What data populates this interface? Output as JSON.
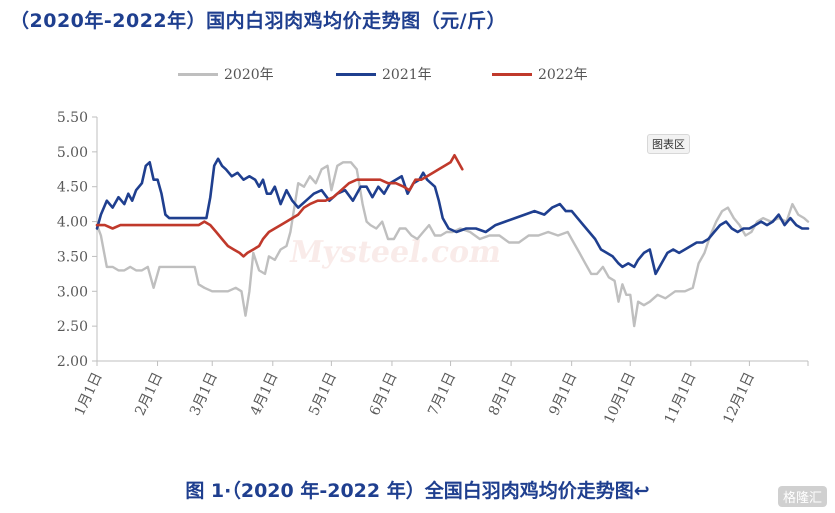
{
  "title": "（2020年-2022年）国内白羽肉鸡均价走势图（元/斤）",
  "caption": "图 1·（2020 年-2022 年）全国白羽肉鸡均价走势图↩",
  "chart_area_tag": "图表区",
  "watermark": "Mysteel.com",
  "corner_badge": "格隆汇",
  "colors": {
    "series_2020": "#bfbfbf",
    "series_2021": "#1f3f8f",
    "series_2022": "#c0392b",
    "title": "#1f3f8f"
  },
  "chart_data": {
    "type": "line",
    "title": "（2020年-2022年）国内白羽肉鸡均价走势图（元/斤）",
    "xlabel": "",
    "ylabel": "",
    "ylim": [
      2.0,
      5.5
    ],
    "yticks": [
      "2.00",
      "2.50",
      "3.00",
      "3.50",
      "4.00",
      "4.50",
      "5.00",
      "5.50"
    ],
    "x_tick_labels": [
      "1月1日",
      "2月1日",
      "3月1日",
      "4月1日",
      "5月1日",
      "6月1日",
      "7月1日",
      "8月1日",
      "9月1日",
      "10月1日",
      "11月1日",
      "12月1日"
    ],
    "x_unit": "day of year (1–365)",
    "legend_position": "top-center",
    "grid": false,
    "series": [
      {
        "name": "2020年",
        "points": [
          [
            1,
            3.95
          ],
          [
            3,
            3.8
          ],
          [
            6,
            3.35
          ],
          [
            9,
            3.35
          ],
          [
            12,
            3.3
          ],
          [
            15,
            3.3
          ],
          [
            18,
            3.35
          ],
          [
            21,
            3.3
          ],
          [
            24,
            3.3
          ],
          [
            27,
            3.35
          ],
          [
            30,
            3.05
          ],
          [
            33,
            3.35
          ],
          [
            36,
            3.35
          ],
          [
            40,
            3.35
          ],
          [
            44,
            3.35
          ],
          [
            48,
            3.35
          ],
          [
            51,
            3.35
          ],
          [
            53,
            3.1
          ],
          [
            56,
            3.05
          ],
          [
            60,
            3.0
          ],
          [
            64,
            3.0
          ],
          [
            68,
            3.0
          ],
          [
            72,
            3.05
          ],
          [
            75,
            3.0
          ],
          [
            77,
            2.65
          ],
          [
            79,
            3.0
          ],
          [
            81,
            3.55
          ],
          [
            84,
            3.3
          ],
          [
            87,
            3.25
          ],
          [
            89,
            3.5
          ],
          [
            92,
            3.45
          ],
          [
            95,
            3.6
          ],
          [
            98,
            3.65
          ],
          [
            100,
            3.85
          ],
          [
            102,
            4.2
          ],
          [
            104,
            4.55
          ],
          [
            107,
            4.5
          ],
          [
            110,
            4.65
          ],
          [
            113,
            4.55
          ],
          [
            116,
            4.75
          ],
          [
            119,
            4.8
          ],
          [
            121,
            4.45
          ],
          [
            124,
            4.8
          ],
          [
            127,
            4.85
          ],
          [
            131,
            4.85
          ],
          [
            134,
            4.75
          ],
          [
            137,
            4.25
          ],
          [
            139,
            4.0
          ],
          [
            141,
            3.95
          ],
          [
            144,
            3.9
          ],
          [
            147,
            4.0
          ],
          [
            150,
            3.75
          ],
          [
            153,
            3.75
          ],
          [
            156,
            3.9
          ],
          [
            159,
            3.9
          ],
          [
            162,
            3.8
          ],
          [
            165,
            3.75
          ],
          [
            168,
            3.85
          ],
          [
            171,
            3.95
          ],
          [
            174,
            3.8
          ],
          [
            177,
            3.8
          ],
          [
            180,
            3.85
          ],
          [
            183,
            3.85
          ],
          [
            187,
            3.9
          ],
          [
            192,
            3.85
          ],
          [
            197,
            3.75
          ],
          [
            202,
            3.8
          ],
          [
            207,
            3.8
          ],
          [
            212,
            3.7
          ],
          [
            217,
            3.7
          ],
          [
            222,
            3.8
          ],
          [
            227,
            3.8
          ],
          [
            232,
            3.85
          ],
          [
            237,
            3.8
          ],
          [
            242,
            3.85
          ],
          [
            245,
            3.7
          ],
          [
            248,
            3.55
          ],
          [
            251,
            3.4
          ],
          [
            254,
            3.25
          ],
          [
            257,
            3.25
          ],
          [
            260,
            3.35
          ],
          [
            263,
            3.2
          ],
          [
            266,
            3.15
          ],
          [
            268,
            2.85
          ],
          [
            270,
            3.1
          ],
          [
            272,
            2.95
          ],
          [
            274,
            2.95
          ],
          [
            276,
            2.5
          ],
          [
            278,
            2.85
          ],
          [
            281,
            2.8
          ],
          [
            284,
            2.85
          ],
          [
            288,
            2.95
          ],
          [
            292,
            2.9
          ],
          [
            297,
            3.0
          ],
          [
            302,
            3.0
          ],
          [
            306,
            3.05
          ],
          [
            309,
            3.4
          ],
          [
            312,
            3.55
          ],
          [
            315,
            3.8
          ],
          [
            318,
            4.0
          ],
          [
            321,
            4.15
          ],
          [
            324,
            4.2
          ],
          [
            327,
            4.05
          ],
          [
            330,
            3.95
          ],
          [
            333,
            3.8
          ],
          [
            336,
            3.85
          ],
          [
            339,
            4.0
          ],
          [
            342,
            4.05
          ],
          [
            346,
            4.0
          ],
          [
            350,
            4.05
          ],
          [
            354,
            4.0
          ],
          [
            357,
            4.25
          ],
          [
            360,
            4.1
          ],
          [
            363,
            4.05
          ],
          [
            365,
            4.0
          ]
        ]
      },
      {
        "name": "2021年",
        "points": [
          [
            1,
            3.9
          ],
          [
            3,
            4.1
          ],
          [
            6,
            4.3
          ],
          [
            9,
            4.2
          ],
          [
            12,
            4.35
          ],
          [
            15,
            4.25
          ],
          [
            17,
            4.4
          ],
          [
            19,
            4.3
          ],
          [
            21,
            4.45
          ],
          [
            24,
            4.55
          ],
          [
            26,
            4.8
          ],
          [
            28,
            4.85
          ],
          [
            30,
            4.6
          ],
          [
            32,
            4.6
          ],
          [
            34,
            4.4
          ],
          [
            36,
            4.1
          ],
          [
            38,
            4.05
          ],
          [
            42,
            4.05
          ],
          [
            47,
            4.05
          ],
          [
            52,
            4.05
          ],
          [
            57,
            4.05
          ],
          [
            59,
            4.35
          ],
          [
            61,
            4.8
          ],
          [
            63,
            4.9
          ],
          [
            65,
            4.8
          ],
          [
            67,
            4.75
          ],
          [
            70,
            4.65
          ],
          [
            73,
            4.7
          ],
          [
            76,
            4.6
          ],
          [
            79,
            4.65
          ],
          [
            82,
            4.6
          ],
          [
            84,
            4.5
          ],
          [
            86,
            4.6
          ],
          [
            88,
            4.4
          ],
          [
            90,
            4.4
          ],
          [
            92,
            4.5
          ],
          [
            95,
            4.25
          ],
          [
            98,
            4.45
          ],
          [
            101,
            4.3
          ],
          [
            104,
            4.2
          ],
          [
            108,
            4.3
          ],
          [
            112,
            4.4
          ],
          [
            116,
            4.45
          ],
          [
            120,
            4.3
          ],
          [
            124,
            4.4
          ],
          [
            128,
            4.45
          ],
          [
            132,
            4.3
          ],
          [
            136,
            4.5
          ],
          [
            139,
            4.5
          ],
          [
            142,
            4.35
          ],
          [
            145,
            4.5
          ],
          [
            148,
            4.4
          ],
          [
            151,
            4.55
          ],
          [
            154,
            4.6
          ],
          [
            157,
            4.65
          ],
          [
            160,
            4.4
          ],
          [
            163,
            4.55
          ],
          [
            166,
            4.6
          ],
          [
            168,
            4.7
          ],
          [
            170,
            4.6
          ],
          [
            172,
            4.55
          ],
          [
            174,
            4.5
          ],
          [
            176,
            4.3
          ],
          [
            178,
            4.05
          ],
          [
            181,
            3.9
          ],
          [
            185,
            3.85
          ],
          [
            190,
            3.9
          ],
          [
            195,
            3.9
          ],
          [
            200,
            3.85
          ],
          [
            205,
            3.95
          ],
          [
            210,
            4.0
          ],
          [
            215,
            4.05
          ],
          [
            220,
            4.1
          ],
          [
            225,
            4.15
          ],
          [
            230,
            4.1
          ],
          [
            234,
            4.2
          ],
          [
            238,
            4.25
          ],
          [
            241,
            4.15
          ],
          [
            244,
            4.15
          ],
          [
            247,
            4.05
          ],
          [
            250,
            3.95
          ],
          [
            253,
            3.85
          ],
          [
            256,
            3.75
          ],
          [
            259,
            3.6
          ],
          [
            262,
            3.55
          ],
          [
            265,
            3.5
          ],
          [
            268,
            3.4
          ],
          [
            270,
            3.35
          ],
          [
            273,
            3.4
          ],
          [
            276,
            3.35
          ],
          [
            278,
            3.45
          ],
          [
            281,
            3.55
          ],
          [
            284,
            3.6
          ],
          [
            287,
            3.25
          ],
          [
            290,
            3.4
          ],
          [
            293,
            3.55
          ],
          [
            296,
            3.6
          ],
          [
            299,
            3.55
          ],
          [
            302,
            3.6
          ],
          [
            305,
            3.65
          ],
          [
            308,
            3.7
          ],
          [
            311,
            3.7
          ],
          [
            314,
            3.75
          ],
          [
            317,
            3.85
          ],
          [
            320,
            3.95
          ],
          [
            323,
            4.0
          ],
          [
            326,
            3.9
          ],
          [
            329,
            3.85
          ],
          [
            332,
            3.9
          ],
          [
            335,
            3.9
          ],
          [
            338,
            3.95
          ],
          [
            341,
            4.0
          ],
          [
            344,
            3.95
          ],
          [
            347,
            4.0
          ],
          [
            350,
            4.1
          ],
          [
            353,
            3.95
          ],
          [
            356,
            4.05
          ],
          [
            359,
            3.95
          ],
          [
            362,
            3.9
          ],
          [
            365,
            3.9
          ]
        ]
      },
      {
        "name": "2022年",
        "points": [
          [
            1,
            3.95
          ],
          [
            5,
            3.95
          ],
          [
            9,
            3.9
          ],
          [
            13,
            3.95
          ],
          [
            17,
            3.95
          ],
          [
            21,
            3.95
          ],
          [
            25,
            3.95
          ],
          [
            29,
            3.95
          ],
          [
            33,
            3.95
          ],
          [
            37,
            3.95
          ],
          [
            41,
            3.95
          ],
          [
            45,
            3.95
          ],
          [
            49,
            3.95
          ],
          [
            53,
            3.95
          ],
          [
            56,
            4.0
          ],
          [
            59,
            3.95
          ],
          [
            62,
            3.85
          ],
          [
            65,
            3.75
          ],
          [
            68,
            3.65
          ],
          [
            71,
            3.6
          ],
          [
            74,
            3.55
          ],
          [
            76,
            3.5
          ],
          [
            78,
            3.55
          ],
          [
            81,
            3.6
          ],
          [
            84,
            3.65
          ],
          [
            86,
            3.75
          ],
          [
            89,
            3.85
          ],
          [
            92,
            3.9
          ],
          [
            95,
            3.95
          ],
          [
            98,
            4.0
          ],
          [
            101,
            4.05
          ],
          [
            104,
            4.1
          ],
          [
            107,
            4.2
          ],
          [
            110,
            4.25
          ],
          [
            114,
            4.3
          ],
          [
            118,
            4.3
          ],
          [
            122,
            4.35
          ],
          [
            126,
            4.45
          ],
          [
            130,
            4.55
          ],
          [
            134,
            4.6
          ],
          [
            138,
            4.6
          ],
          [
            142,
            4.6
          ],
          [
            146,
            4.6
          ],
          [
            150,
            4.55
          ],
          [
            154,
            4.55
          ],
          [
            158,
            4.5
          ],
          [
            161,
            4.45
          ],
          [
            164,
            4.6
          ],
          [
            167,
            4.6
          ],
          [
            170,
            4.65
          ],
          [
            173,
            4.7
          ],
          [
            176,
            4.75
          ],
          [
            179,
            4.8
          ],
          [
            182,
            4.85
          ],
          [
            184,
            4.95
          ],
          [
            186,
            4.85
          ],
          [
            188,
            4.75
          ]
        ]
      }
    ]
  }
}
